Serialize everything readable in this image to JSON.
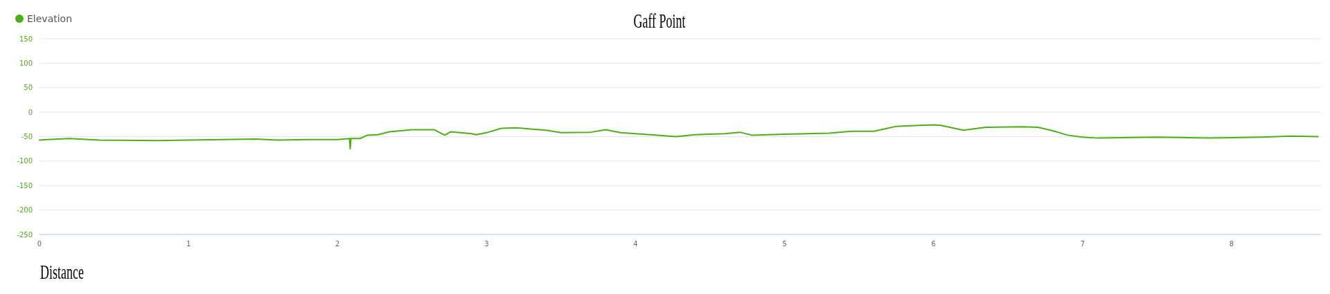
{
  "chart_data": {
    "type": "line",
    "title": "Gaff Point",
    "xlabel": "Distance",
    "legend": "top left",
    "grid": "y",
    "marker": "none",
    "xlim": [
      0,
      8.6
    ],
    "xticks": [
      0,
      1,
      2,
      3,
      4,
      5,
      6,
      7,
      8
    ],
    "ylim": [
      -250,
      150
    ],
    "yticks": [
      -250,
      -200,
      -150,
      -100,
      -50,
      0,
      50,
      100,
      150
    ],
    "series": [
      {
        "name": "Elevation",
        "color": "#4caf15",
        "x": [
          0,
          0.05,
          0.2,
          0.4,
          0.8,
          1.0,
          1.45,
          1.6,
          1.8,
          2.0,
          2.08,
          2.085,
          2.09,
          2.15,
          2.2,
          2.27,
          2.35,
          2.5,
          2.65,
          2.72,
          2.76,
          2.9,
          2.93,
          3.0,
          3.1,
          3.2,
          3.4,
          3.5,
          3.7,
          3.8,
          3.9,
          4.1,
          4.27,
          4.4,
          4.6,
          4.7,
          4.78,
          5.0,
          5.3,
          5.45,
          5.6,
          5.75,
          5.9,
          6.0,
          6.05,
          6.2,
          6.35,
          6.6,
          6.7,
          6.8,
          6.9,
          7.0,
          7.1,
          7.5,
          7.85,
          8.2,
          8.4,
          8.58
        ],
        "values": [
          -57,
          -56,
          -54,
          -57,
          -58,
          -57,
          -55,
          -57,
          -56,
          -56,
          -54,
          -75,
          -54,
          -54,
          -47,
          -46,
          -40,
          -36,
          -36,
          -47,
          -40,
          -44,
          -46,
          -42,
          -33,
          -32,
          -37,
          -42,
          -41,
          -36,
          -42,
          -46,
          -50,
          -46,
          -44,
          -41,
          -47,
          -45,
          -43,
          -39,
          -39,
          -29,
          -27,
          -26,
          -27,
          -37,
          -31,
          -30,
          -31,
          -38,
          -47,
          -51,
          -53,
          -51,
          -53,
          -51,
          -49,
          -50
        ]
      }
    ]
  }
}
